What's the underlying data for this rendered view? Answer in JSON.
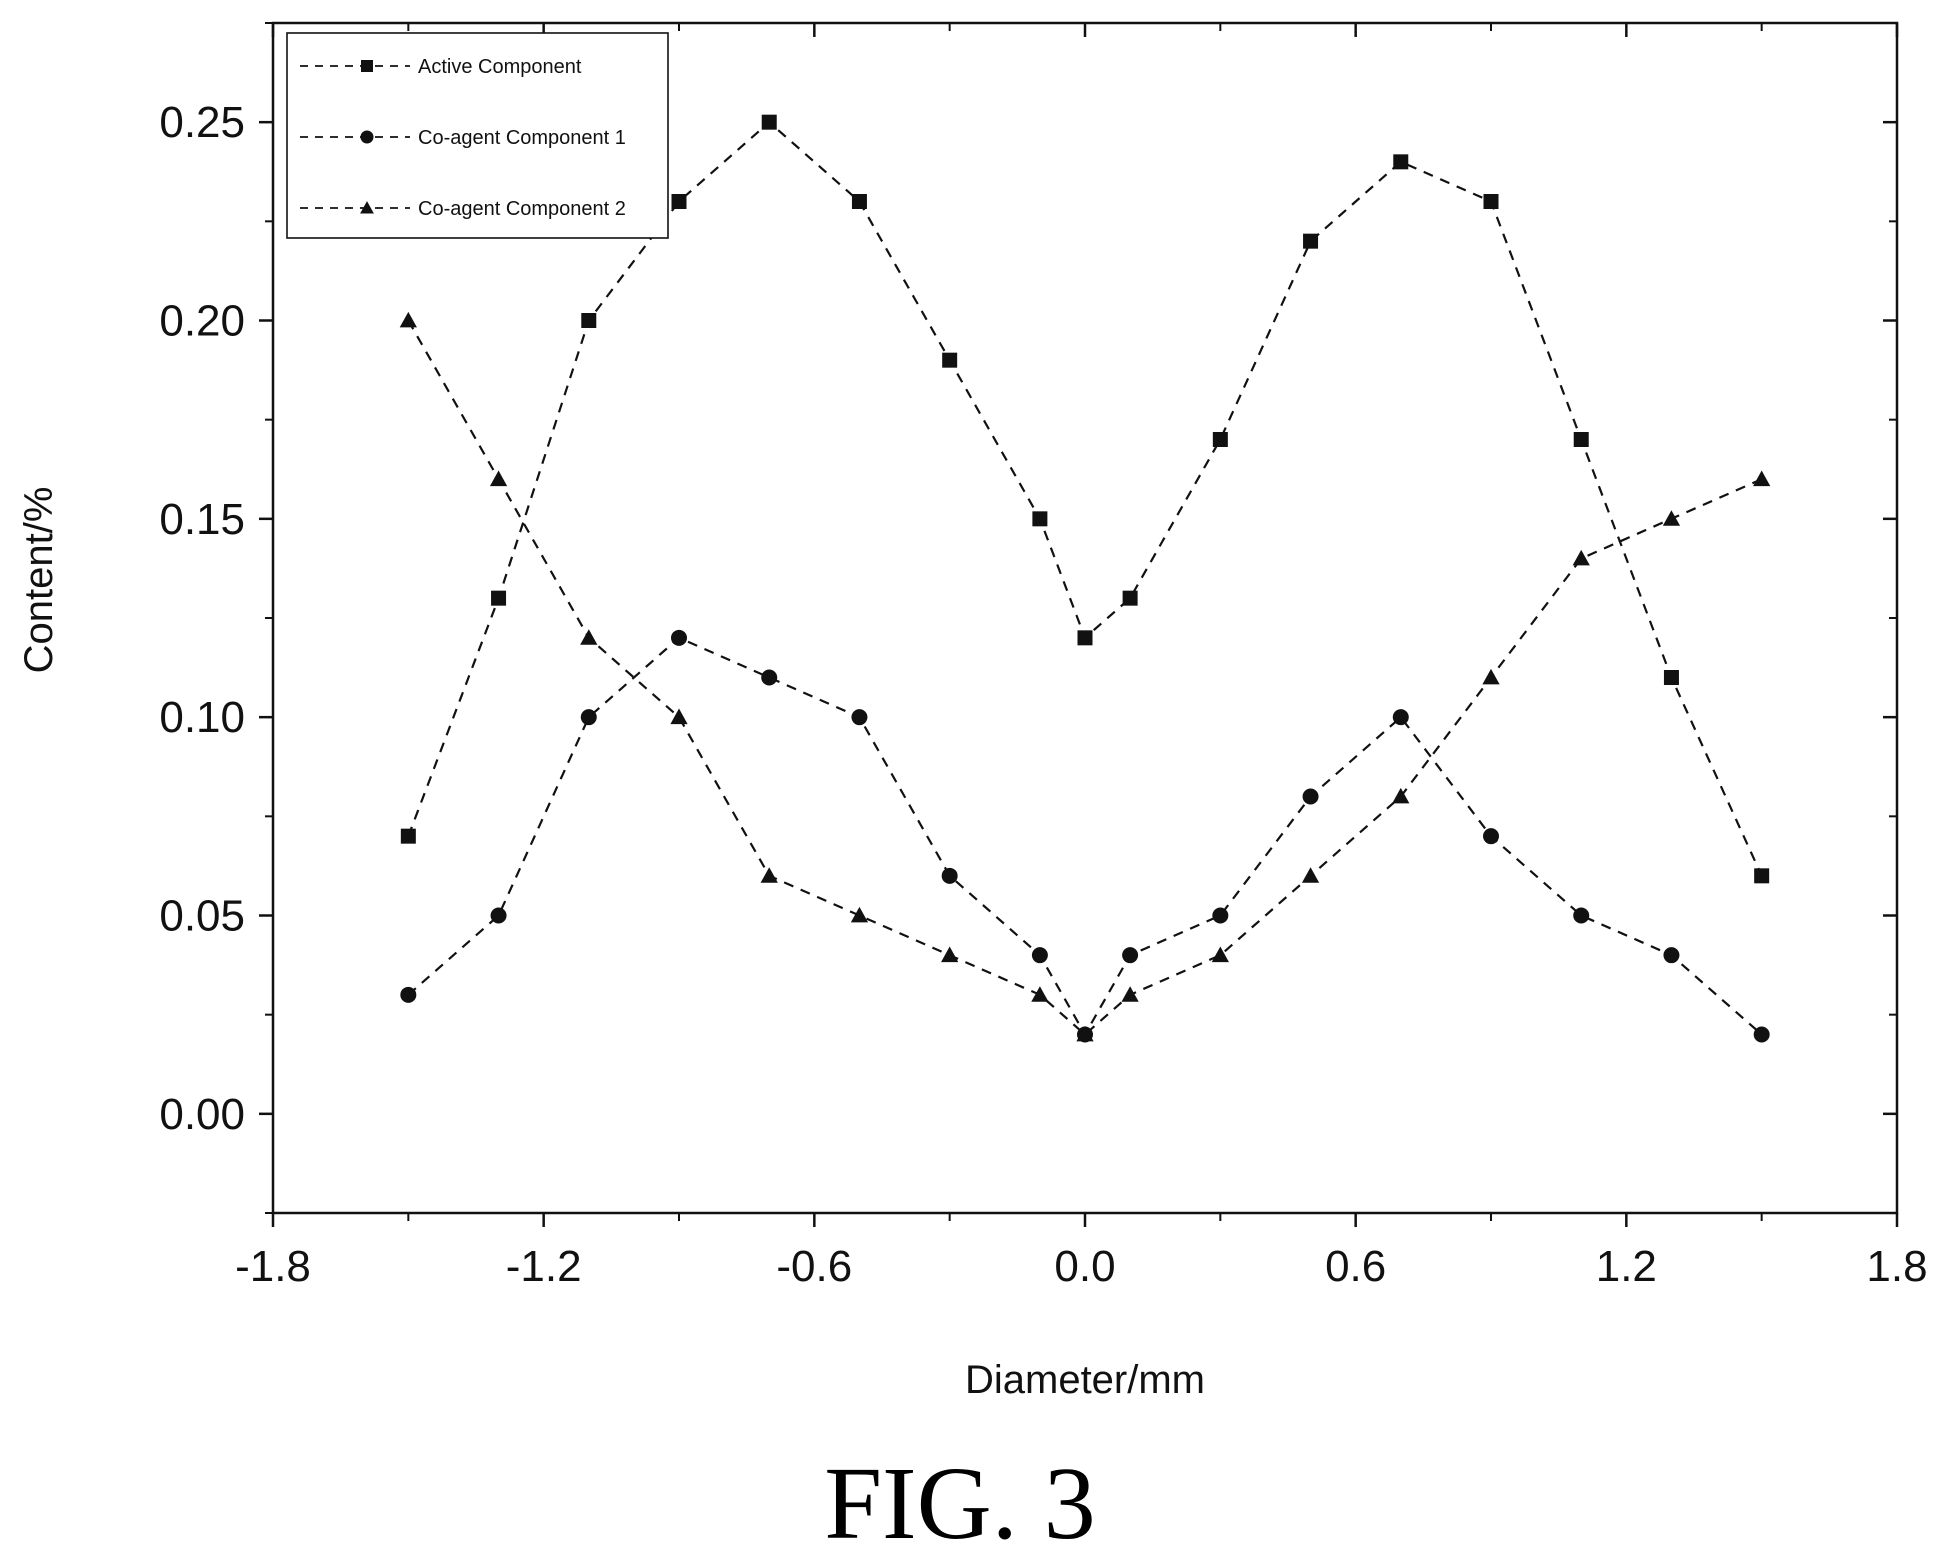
{
  "caption": "FIG. 3",
  "chart_data": {
    "type": "line",
    "xlabel": "Diameter/mm",
    "ylabel": "Content/%",
    "xlim": [
      -1.8,
      1.8
    ],
    "ylim": [
      -0.025,
      0.275
    ],
    "x_ticks": [
      "-1.8",
      "-1.2",
      "-0.6",
      "0.0",
      "0.6",
      "1.2",
      "1.8"
    ],
    "y_ticks": [
      "0.00",
      "0.05",
      "0.10",
      "0.15",
      "0.20",
      "0.25"
    ],
    "x": [
      -1.5,
      -1.3,
      -1.1,
      -0.9,
      -0.7,
      -0.5,
      -0.3,
      -0.1,
      0.0,
      0.1,
      0.3,
      0.5,
      0.7,
      0.9,
      1.1,
      1.3,
      1.5
    ],
    "series": [
      {
        "name": "Active Component",
        "marker": "square",
        "values": [
          0.07,
          0.13,
          0.2,
          0.23,
          0.25,
          0.23,
          0.19,
          0.15,
          0.12,
          0.13,
          0.17,
          0.22,
          0.24,
          0.23,
          0.17,
          0.11,
          0.06
        ]
      },
      {
        "name": "Co-agent Component 1",
        "marker": "circle",
        "values": [
          0.03,
          0.05,
          0.1,
          0.12,
          0.11,
          0.1,
          0.06,
          0.04,
          0.02,
          0.04,
          0.05,
          0.08,
          0.1,
          0.07,
          0.05,
          0.04,
          0.02
        ]
      },
      {
        "name": "Co-agent Component 2",
        "marker": "triangle",
        "values": [
          0.2,
          0.16,
          0.12,
          0.1,
          0.06,
          0.05,
          0.04,
          0.03,
          0.02,
          0.03,
          0.04,
          0.06,
          0.08,
          0.11,
          0.14,
          0.15,
          0.16
        ]
      }
    ],
    "legend_position": "top-left",
    "grid": false,
    "line_style": "dashed",
    "color": "#111111"
  }
}
